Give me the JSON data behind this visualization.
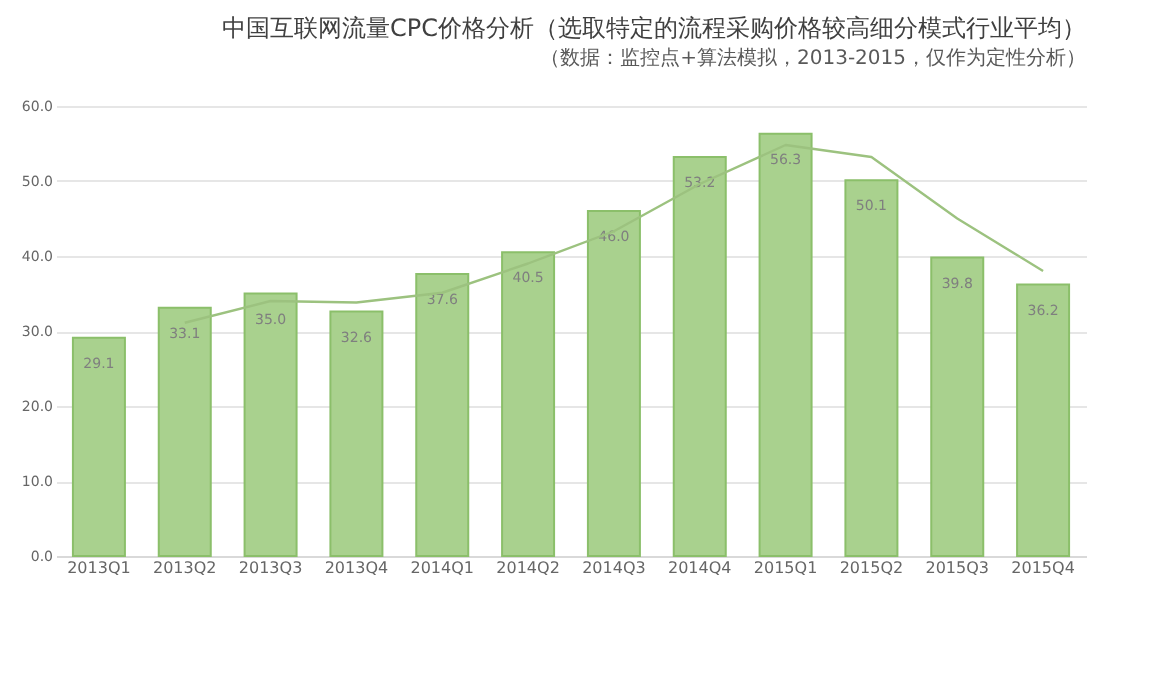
{
  "chart_data": {
    "type": "bar",
    "title": "中国互联网流量CPC价格分析（选取特定的流程采购价格较高细分模式行业平均）",
    "subtitle": "（数据：监控点+算法模拟，2013-2015，仅作为定性分析）",
    "categories": [
      "2013Q1",
      "2013Q2",
      "2013Q3",
      "2013Q4",
      "2014Q1",
      "2014Q2",
      "2014Q3",
      "2014Q4",
      "2015Q1",
      "2015Q2",
      "2015Q3",
      "2015Q4"
    ],
    "series": [
      {
        "color": "#a9d18e",
        "values": [
          29.1,
          33.1,
          35.0,
          32.6,
          37.6,
          40.5,
          46.0,
          53.2,
          56.3,
          50.1,
          39.8,
          36.2
        ],
        "value_labels": [
          "29.1",
          "33.1",
          "35.0",
          "32.6",
          "37.6",
          "40.5",
          "46.0",
          "53.2",
          "56.3",
          "50.1",
          "39.8",
          "36.2"
        ]
      },
      {
        "type": "line",
        "color": "#9cc27f",
        "values": [
          null,
          31.1,
          34.0,
          33.8,
          35.1,
          39.0,
          43.3,
          49.6,
          54.8,
          53.2,
          45.0,
          38.0
        ]
      }
    ],
    "ylim": [
      0,
      60
    ],
    "yticks": [
      {
        "value": 0,
        "label": "0.0"
      },
      {
        "value": 10,
        "label": "10.0"
      },
      {
        "value": 20,
        "label": "20.0"
      },
      {
        "value": 30,
        "label": "30.0"
      },
      {
        "value": 40,
        "label": "40.0"
      },
      {
        "value": 50,
        "label": "50.0"
      },
      {
        "value": 60,
        "label": "60.0"
      }
    ],
    "grid": "y",
    "legend": false
  }
}
